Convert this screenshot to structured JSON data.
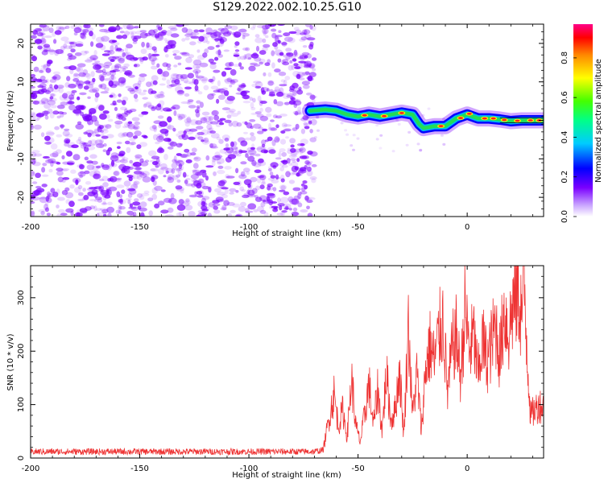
{
  "title": "S129.2022.002.10.25.G10",
  "colors": {
    "snr_line": "#ee3333",
    "scatter": "#7a00ff",
    "heat_core": "#ff2020",
    "heat_mid": "#22dd55",
    "heat_edge": "#00bbee",
    "heat_outer": "#0000ff"
  },
  "chart_data": [
    {
      "type": "heatmap",
      "title": "S129.2022.002.10.25.G10",
      "xlabel": "Height of straight line (km)",
      "ylabel": "Frequency (Hz)",
      "xlim": [
        -200,
        35
      ],
      "ylim": [
        -25,
        25
      ],
      "x_ticks": [
        -200,
        -150,
        -100,
        -50,
        0
      ],
      "y_ticks": [
        -20,
        -10,
        0,
        10,
        20
      ],
      "noise_region_x": [
        -200,
        -70
      ],
      "ridge": {
        "x": [
          -72,
          -65,
          -60,
          -55,
          -50,
          -45,
          -40,
          -35,
          -30,
          -25,
          -22,
          -20,
          -15,
          -10,
          -5,
          0,
          5,
          10,
          15,
          20,
          25,
          30,
          35
        ],
        "freq": [
          2.5,
          2.8,
          2.5,
          1.5,
          1.0,
          1.5,
          1.0,
          1.5,
          2.0,
          1.5,
          -1.0,
          -2.0,
          -1.5,
          -1.5,
          0.5,
          1.5,
          0.5,
          0.5,
          0.2,
          -0.2,
          0.0,
          0.0,
          0.0
        ]
      },
      "colorbar": {
        "label": "Normalized spectral amplitude",
        "ticks": [
          "0.0",
          "0.2",
          "0.4",
          "0.6",
          "0.8"
        ],
        "range": [
          0,
          0.97
        ]
      }
    },
    {
      "type": "line",
      "xlabel": "Height of straight line (km)",
      "ylabel": "SNR (10 * v/v)",
      "xlim": [
        -200,
        35
      ],
      "ylim": [
        0,
        360
      ],
      "x_ticks": [
        -200,
        -150,
        -100,
        -50,
        0
      ],
      "y_ticks": [
        0,
        100,
        200,
        300
      ],
      "series": [
        {
          "x": [
            -200,
            -180,
            -160,
            -140,
            -120,
            -100,
            -80,
            -70,
            -66,
            -63,
            -61,
            -59,
            -57,
            -55,
            -53,
            -51,
            -49,
            -47,
            -45,
            -43,
            -41,
            -39,
            -37,
            -35,
            -33,
            -31,
            -29,
            -27,
            -25,
            -23,
            -21,
            -19,
            -17,
            -15,
            -13,
            -11,
            -9,
            -7,
            -5,
            -3,
            -1,
            1,
            3,
            5,
            7,
            9,
            11,
            13,
            15,
            17,
            19,
            21,
            23,
            25,
            26,
            27,
            29,
            31,
            33,
            35
          ],
          "values": [
            12,
            12,
            12,
            12,
            12,
            12,
            12,
            12,
            15,
            80,
            120,
            60,
            90,
            40,
            150,
            60,
            30,
            80,
            140,
            60,
            130,
            50,
            160,
            70,
            90,
            165,
            40,
            250,
            80,
            160,
            50,
            170,
            210,
            180,
            230,
            260,
            120,
            200,
            230,
            150,
            280,
            200,
            230,
            150,
            220,
            180,
            210,
            250,
            190,
            280,
            230,
            290,
            310,
            270,
            340,
            240,
            80,
            90,
            100,
            95
          ]
        }
      ]
    }
  ]
}
